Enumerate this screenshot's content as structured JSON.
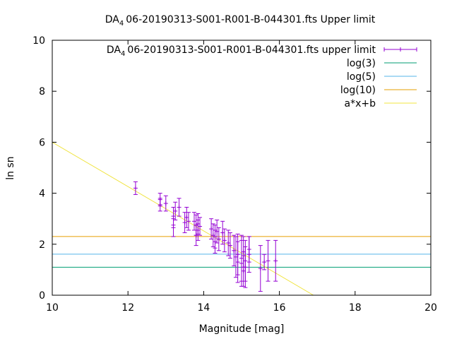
{
  "chart_data": {
    "type": "scatter",
    "title": {
      "prefix": "DA",
      "subscript": "4",
      "rest": "06-20190313-S001-R001-B-044301.fts Upper limit"
    },
    "xlabel": "Magnitude [mag]",
    "ylabel": "ln sn",
    "xlim": [
      10,
      20
    ],
    "ylim": [
      0,
      10
    ],
    "xticks": [
      10,
      12,
      14,
      16,
      18,
      20
    ],
    "yticks": [
      0,
      2,
      4,
      6,
      8,
      10
    ],
    "grid": false,
    "legend_position": "top-right",
    "colors": {
      "points": "#9400d3",
      "log3": "#009e73",
      "log5": "#56b4e9",
      "log10": "#e69f00",
      "fit": "#f0e442"
    },
    "legend": [
      {
        "key": "points",
        "label_prefix": "DA",
        "label_sub": "4",
        "label_rest": "06-20190313-S001-R001-B-044301.fts upper limit"
      },
      {
        "key": "log3",
        "label": "log(3)"
      },
      {
        "key": "log5",
        "label": "log(5)"
      },
      {
        "key": "log10",
        "label": "log(10)"
      }
    ],
    "legend_fit_label": "a*x+b",
    "hlines": [
      {
        "key": "log3",
        "y": 1.0986
      },
      {
        "key": "log5",
        "y": 1.6094
      },
      {
        "key": "log10",
        "y": 2.3026
      }
    ],
    "fit_line": {
      "x": [
        10.0,
        16.9
      ],
      "y": [
        6.0,
        0.0
      ]
    },
    "series": [
      {
        "x": [
          12.2,
          12.85,
          12.85,
          13.0,
          13.2,
          13.2,
          13.25,
          13.35,
          13.5,
          13.55,
          13.6,
          13.75,
          13.8,
          13.8,
          13.85,
          13.85,
          13.9,
          14.2,
          14.25,
          14.3,
          14.3,
          14.35,
          14.4,
          14.5,
          14.55,
          14.65,
          14.7,
          14.8,
          14.85,
          14.9,
          14.9,
          15.0,
          15.0,
          15.05,
          15.05,
          15.1,
          15.1,
          15.2,
          15.2,
          15.5,
          15.6,
          15.7,
          15.9
        ],
        "y": [
          4.2,
          3.75,
          3.55,
          3.6,
          3.1,
          2.65,
          3.3,
          3.45,
          2.85,
          3.05,
          2.9,
          2.9,
          2.75,
          2.35,
          2.8,
          2.55,
          2.7,
          2.6,
          2.35,
          2.3,
          2.1,
          2.5,
          2.2,
          2.45,
          2.15,
          2.05,
          1.95,
          1.75,
          1.5,
          1.3,
          1.6,
          1.25,
          1.45,
          0.95,
          1.7,
          1.35,
          1.1,
          1.6,
          1.8,
          1.05,
          1.3,
          1.35,
          1.35
        ],
        "err": [
          0.25,
          0.25,
          0.25,
          0.3,
          0.35,
          0.35,
          0.35,
          0.35,
          0.4,
          0.4,
          0.35,
          0.35,
          0.4,
          0.4,
          0.4,
          0.4,
          0.35,
          0.4,
          0.45,
          0.45,
          0.45,
          0.45,
          0.45,
          0.45,
          0.45,
          0.5,
          0.5,
          0.6,
          0.8,
          0.8,
          0.8,
          0.9,
          0.9,
          0.6,
          0.6,
          0.8,
          0.8,
          0.7,
          0.5,
          0.9,
          0.3,
          0.8,
          0.8
        ]
      }
    ]
  }
}
